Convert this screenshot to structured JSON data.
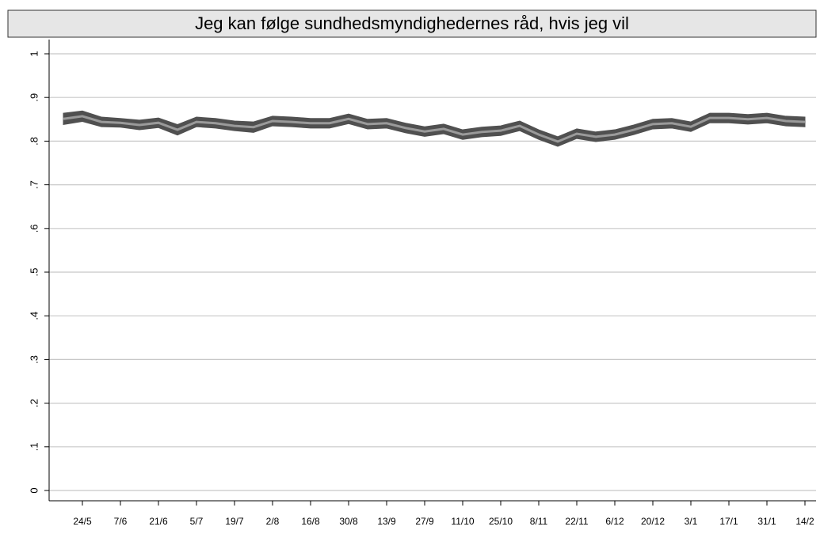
{
  "chart_data": {
    "type": "line",
    "title": "Jeg kan følge sundhedsmyndighedernes råd, hvis jeg vil",
    "categories": [
      null,
      "24/5",
      null,
      "7/6",
      null,
      "21/6",
      null,
      "5/7",
      null,
      "19/7",
      null,
      "2/8",
      null,
      "16/8",
      null,
      "30/8",
      null,
      "13/9",
      null,
      "27/9",
      null,
      "11/10",
      null,
      "25/10",
      null,
      "8/11",
      null,
      "22/11",
      null,
      "6/12",
      null,
      "20/12",
      null,
      "3/1",
      null,
      "17/1",
      null,
      "31/1",
      null,
      "14/2"
    ],
    "values": [
      0.851,
      0.857,
      0.844,
      0.842,
      0.837,
      0.842,
      0.826,
      0.844,
      0.841,
      0.835,
      0.832,
      0.846,
      0.844,
      0.841,
      0.841,
      0.851,
      0.839,
      0.841,
      0.83,
      0.822,
      0.828,
      0.815,
      0.821,
      0.824,
      0.835,
      0.815,
      0.799,
      0.817,
      0.81,
      0.815,
      0.826,
      0.839,
      0.841,
      0.833,
      0.853,
      0.853,
      0.85,
      0.853,
      0.846,
      0.844
    ],
    "color": "#9a9a9a",
    "band": {
      "color": "#505050",
      "lower": [
        0.838,
        0.845,
        0.833,
        0.832,
        0.826,
        0.831,
        0.814,
        0.833,
        0.83,
        0.824,
        0.82,
        0.835,
        0.833,
        0.83,
        0.83,
        0.84,
        0.828,
        0.83,
        0.819,
        0.811,
        0.817,
        0.804,
        0.81,
        0.813,
        0.824,
        0.804,
        0.788,
        0.806,
        0.799,
        0.804,
        0.815,
        0.828,
        0.83,
        0.822,
        0.842,
        0.842,
        0.839,
        0.842,
        0.835,
        0.833
      ],
      "upper": [
        0.864,
        0.869,
        0.855,
        0.852,
        0.848,
        0.853,
        0.838,
        0.855,
        0.852,
        0.846,
        0.844,
        0.857,
        0.855,
        0.852,
        0.852,
        0.862,
        0.85,
        0.852,
        0.841,
        0.833,
        0.839,
        0.826,
        0.832,
        0.835,
        0.846,
        0.826,
        0.81,
        0.828,
        0.821,
        0.826,
        0.837,
        0.85,
        0.852,
        0.844,
        0.864,
        0.864,
        0.861,
        0.864,
        0.857,
        0.855
      ]
    },
    "ylim": [
      0,
      1
    ],
    "yticks": [
      0,
      {
        "value": 0.1,
        "label": ".1"
      },
      {
        "value": 0.2,
        "label": ".2"
      },
      {
        "value": 0.3,
        "label": ".3"
      },
      {
        "value": 0.4,
        "label": ".4"
      },
      {
        "value": 0.5,
        "label": ".5"
      },
      {
        "value": 0.6,
        "label": ".6"
      },
      {
        "value": 0.7,
        "label": ".7"
      },
      {
        "value": 0.8,
        "label": ".8"
      },
      {
        "value": 0.9,
        "label": ".9"
      },
      1
    ],
    "grid": true
  }
}
